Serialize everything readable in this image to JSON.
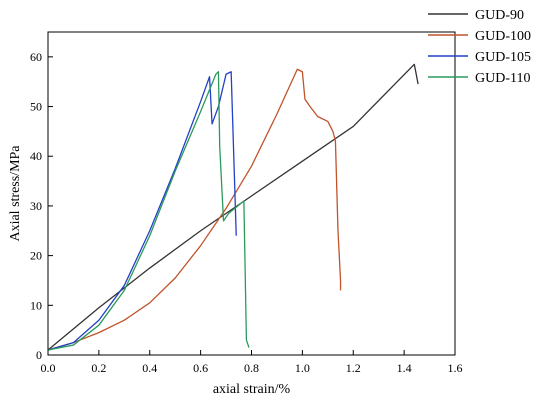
{
  "chart_data": {
    "type": "line",
    "title": "",
    "xlabel": "axial strain/%",
    "ylabel": "Axial stress/MPa",
    "xlim": [
      0.0,
      1.6
    ],
    "ylim": [
      0,
      65
    ],
    "x_ticks": [
      "0.0",
      "0.2",
      "0.4",
      "0.6",
      "0.8",
      "1.0",
      "1.2",
      "1.4",
      "1.6"
    ],
    "y_ticks": [
      "0",
      "10",
      "20",
      "30",
      "40",
      "50",
      "60"
    ],
    "x_tick_values": [
      0.0,
      0.2,
      0.4,
      0.6,
      0.8,
      1.0,
      1.2,
      1.4,
      1.6
    ],
    "y_tick_values": [
      0,
      10,
      20,
      30,
      40,
      50,
      60
    ],
    "grid": false,
    "legend_position": "top-right outside",
    "series": [
      {
        "name": "GUD-90",
        "color": "#333333",
        "x": [
          0.0,
          0.2,
          0.4,
          0.6,
          0.8,
          1.0,
          1.2,
          1.44,
          1.455
        ],
        "y": [
          1.0,
          9.5,
          17.5,
          25.0,
          32.0,
          39.0,
          46.0,
          58.5,
          54.5
        ]
      },
      {
        "name": "GUD-100",
        "color": "#c0532b",
        "x": [
          0.0,
          0.1,
          0.2,
          0.3,
          0.4,
          0.5,
          0.6,
          0.7,
          0.8,
          0.9,
          0.98,
          1.0,
          1.01,
          1.03,
          1.06,
          1.1,
          1.12,
          1.13,
          1.14,
          1.15,
          1.15
        ],
        "y": [
          1.0,
          2.5,
          4.5,
          7.0,
          10.5,
          15.5,
          22.0,
          29.5,
          38.0,
          48.5,
          57.5,
          57.0,
          51.5,
          50.0,
          48.0,
          47.0,
          45.0,
          43.0,
          25.0,
          15.0,
          13.0
        ]
      },
      {
        "name": "GUD-105",
        "color": "#2340c8",
        "x": [
          0.0,
          0.1,
          0.2,
          0.3,
          0.4,
          0.5,
          0.6,
          0.635,
          0.645,
          0.67,
          0.7,
          0.72,
          0.74
        ],
        "y": [
          1.0,
          2.5,
          7.0,
          14.0,
          25.0,
          37.5,
          51.0,
          56.0,
          46.5,
          50.0,
          56.5,
          57.0,
          24.0
        ]
      },
      {
        "name": "GUD-110",
        "color": "#2a9a5c",
        "x": [
          0.0,
          0.1,
          0.2,
          0.3,
          0.4,
          0.5,
          0.6,
          0.66,
          0.67,
          0.675,
          0.69,
          0.71,
          0.77,
          0.78,
          0.79
        ],
        "y": [
          1.0,
          2.0,
          6.0,
          13.0,
          24.0,
          37.0,
          49.0,
          56.5,
          57.0,
          42.0,
          27.0,
          28.5,
          31.0,
          3.0,
          1.5
        ]
      }
    ]
  }
}
